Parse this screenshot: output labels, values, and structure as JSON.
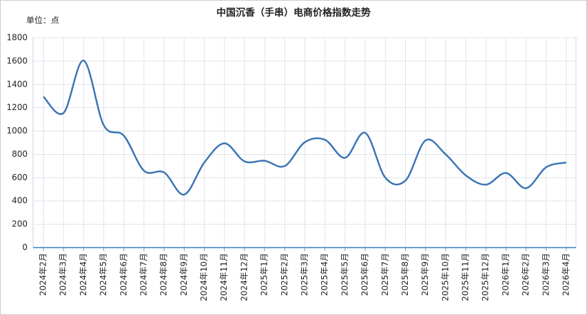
{
  "chart_data": {
    "type": "line",
    "title": "中国沉香（手串）电商价格指数走势",
    "y_label": "单位：点",
    "categories": [
      "2024年2月",
      "2024年3月",
      "2024年4月",
      "2024年5月",
      "2024年6月",
      "2024年7月",
      "2024年8月",
      "2024年9月",
      "2024年10月",
      "2024年11月",
      "2024年12月",
      "2025年1月",
      "2025年2月",
      "2025年3月",
      "2025年4月",
      "2025年5月",
      "2025年6月",
      "2025年7月",
      "2025年8月",
      "2025年9月",
      "2025年10月",
      "2025年11月",
      "2025年12月",
      "2026年1月",
      "2026年2月",
      "2026年3月",
      "2026年4月"
    ],
    "values": [
      1295,
      1155,
      1605,
      1050,
      960,
      660,
      645,
      455,
      730,
      895,
      740,
      745,
      700,
      905,
      925,
      770,
      985,
      600,
      575,
      920,
      800,
      620,
      540,
      640,
      510,
      690,
      730
    ],
    "color": "#3a74b4",
    "ylim": [
      0,
      1800
    ],
    "yticks": [
      0,
      200,
      400,
      600,
      800,
      1000,
      1200,
      1400,
      1600,
      1800
    ],
    "grid": true
  }
}
